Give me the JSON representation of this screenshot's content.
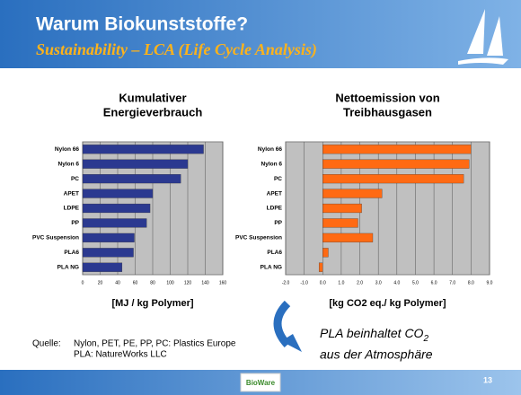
{
  "slide": {
    "title": "Warum Biokunststoffe?",
    "subtitle": "Sustainability – LCA (Life Cycle Analysis)",
    "source_label": "Quelle:",
    "source_lines": [
      "Nylon, PET, PE, PP, PC: Plastics Europe",
      "PLA: NatureWorks LLC"
    ],
    "note": {
      "line1": "PLA beinhaltet CO",
      "subscript": "2",
      "line2": "aus der Atmosphäre"
    },
    "logo": "BioWare",
    "page_number": "13"
  },
  "chart_data": [
    {
      "type": "hbar",
      "title": [
        "Kumulativer",
        "Energieverbrauch"
      ],
      "x_label": "[MJ / kg Polymer]",
      "categories": [
        "Nylon 66",
        "Nylon 6",
        "PC",
        "APET",
        "LDPE",
        "PP",
        "PVC Suspension",
        "PLA6",
        "PLA NG"
      ],
      "values": [
        138,
        120,
        112,
        80,
        77,
        73,
        59,
        58,
        45
      ],
      "color": "#2b3990",
      "xlim": [
        0,
        160
      ],
      "xticks": [
        0,
        20,
        40,
        60,
        80,
        100,
        120,
        140,
        160
      ],
      "grid": true
    },
    {
      "type": "hbar",
      "title": [
        "Nettoemission von",
        "Treibhausgasen"
      ],
      "x_label": "[kg CO2 eq./ kg Polymer]",
      "categories": [
        "Nylon 66",
        "Nylon 6",
        "PC",
        "APET",
        "LDPE",
        "PP",
        "PVC Suspension",
        "PLA6",
        "PLA NG"
      ],
      "values": [
        8.0,
        7.9,
        7.6,
        3.2,
        2.1,
        1.9,
        2.7,
        0.3,
        -0.2
      ],
      "color": "#ff6a13",
      "xlim": [
        -2,
        9
      ],
      "xticks": [
        {
          "value": -2,
          "label": "-2.0"
        },
        {
          "value": -1,
          "label": "-1.0"
        },
        {
          "value": 0,
          "label": "0.0"
        },
        {
          "value": 1,
          "label": "1.0"
        },
        {
          "value": 2,
          "label": "2.0"
        },
        {
          "value": 3,
          "label": "3.0"
        },
        {
          "value": 4,
          "label": "4.0"
        },
        {
          "value": 5,
          "label": "5.0"
        },
        {
          "value": 6,
          "label": "6.0"
        },
        {
          "value": 7,
          "label": "7.0"
        },
        {
          "value": 8,
          "label": "8.0"
        },
        {
          "value": 9,
          "label": "9.0"
        }
      ],
      "grid": true
    }
  ]
}
